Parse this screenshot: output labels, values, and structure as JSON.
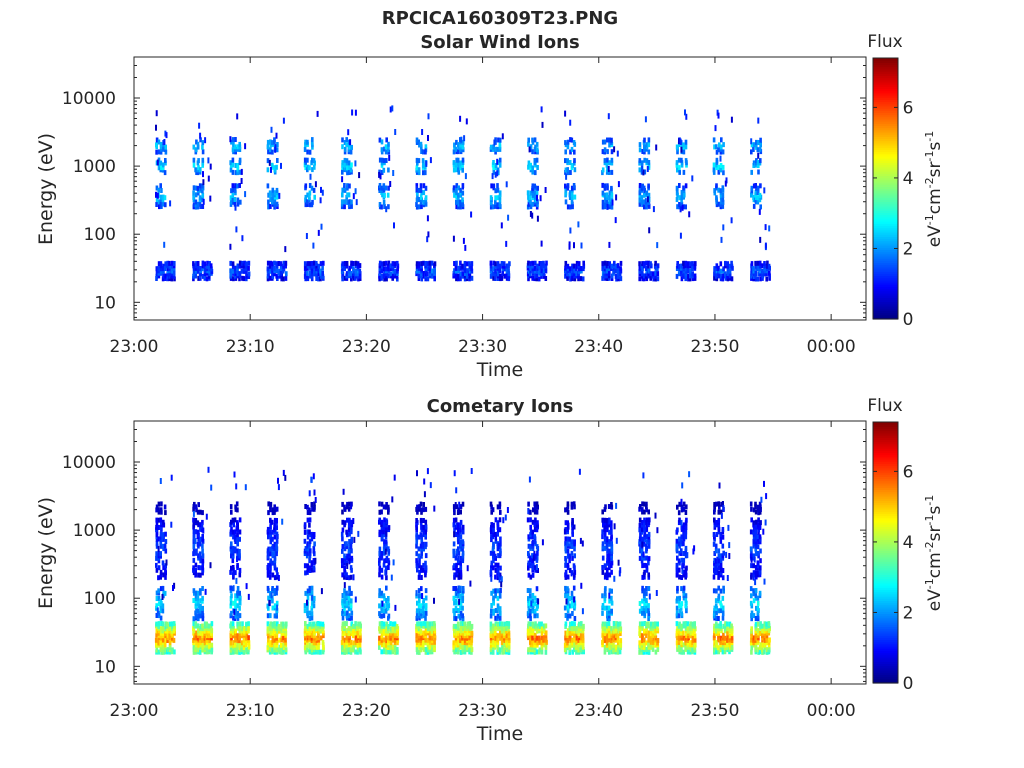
{
  "figure_title": "RPCICA160309T23.PNG",
  "chart_data": [
    {
      "type": "heatmap",
      "title": "Solar Wind Ions",
      "xlabel": "Time",
      "ylabel": "Energy (eV)",
      "x_ticks": [
        "23:00",
        "23:10",
        "23:20",
        "23:30",
        "23:40",
        "23:50",
        "00:00"
      ],
      "x_range_minutes": [
        0,
        63
      ],
      "y_scale": "log",
      "y_ticks": [
        "10",
        "100",
        "1000",
        "10000"
      ],
      "y_range": [
        5.5,
        40000
      ],
      "colorbar": {
        "label": "Flux",
        "unit_label": "eV-1cm-2sr-1s-1",
        "ticks": [
          "0",
          "2",
          "4",
          "6"
        ],
        "range": [
          0,
          7.4
        ],
        "colormap": "jet"
      },
      "sweep_period_minutes": 3.2,
      "sweeps_first_minute": 2.2,
      "sweeps_last_minute": 55.8,
      "bands": [
        {
          "energy_ev": [
            22,
            40
          ],
          "flux": 1.5,
          "spread": 0.9
        },
        {
          "energy_ev": [
            250,
            550
          ],
          "flux": 2.3,
          "spread": 0.8
        },
        {
          "energy_ev": [
            800,
            1300
          ],
          "flux": 2.7,
          "spread": 0.7
        },
        {
          "energy_ev": [
            1600,
            2600
          ],
          "flux": 2.4,
          "spread": 0.7
        }
      ]
    },
    {
      "type": "heatmap",
      "title": "Cometary Ions",
      "xlabel": "Time",
      "ylabel": "Energy (eV)",
      "x_ticks": [
        "23:00",
        "23:10",
        "23:20",
        "23:30",
        "23:40",
        "23:50",
        "00:00"
      ],
      "x_range_minutes": [
        0,
        63
      ],
      "y_scale": "log",
      "y_ticks": [
        "10",
        "100",
        "1000",
        "10000"
      ],
      "y_range": [
        5.5,
        40000
      ],
      "colorbar": {
        "label": "Flux",
        "unit_label": "eV-1cm-2sr-1s-1",
        "ticks": [
          "0",
          "2",
          "4",
          "6"
        ],
        "range": [
          0,
          7.4
        ],
        "colormap": "jet"
      },
      "sweep_period_minutes": 3.2,
      "sweeps_first_minute": 2.2,
      "sweeps_last_minute": 55.8,
      "bands": [
        {
          "energy_ev": [
            16,
            45
          ],
          "flux": 5.6,
          "spread": 1.0
        },
        {
          "energy_ev": [
            50,
            150
          ],
          "flux": 2.6,
          "spread": 0.8
        },
        {
          "energy_ev": [
            200,
            1500
          ],
          "flux": 1.4,
          "spread": 0.6
        },
        {
          "energy_ev": [
            1800,
            2600
          ],
          "flux": 0.6,
          "spread": 0.3
        }
      ]
    }
  ]
}
